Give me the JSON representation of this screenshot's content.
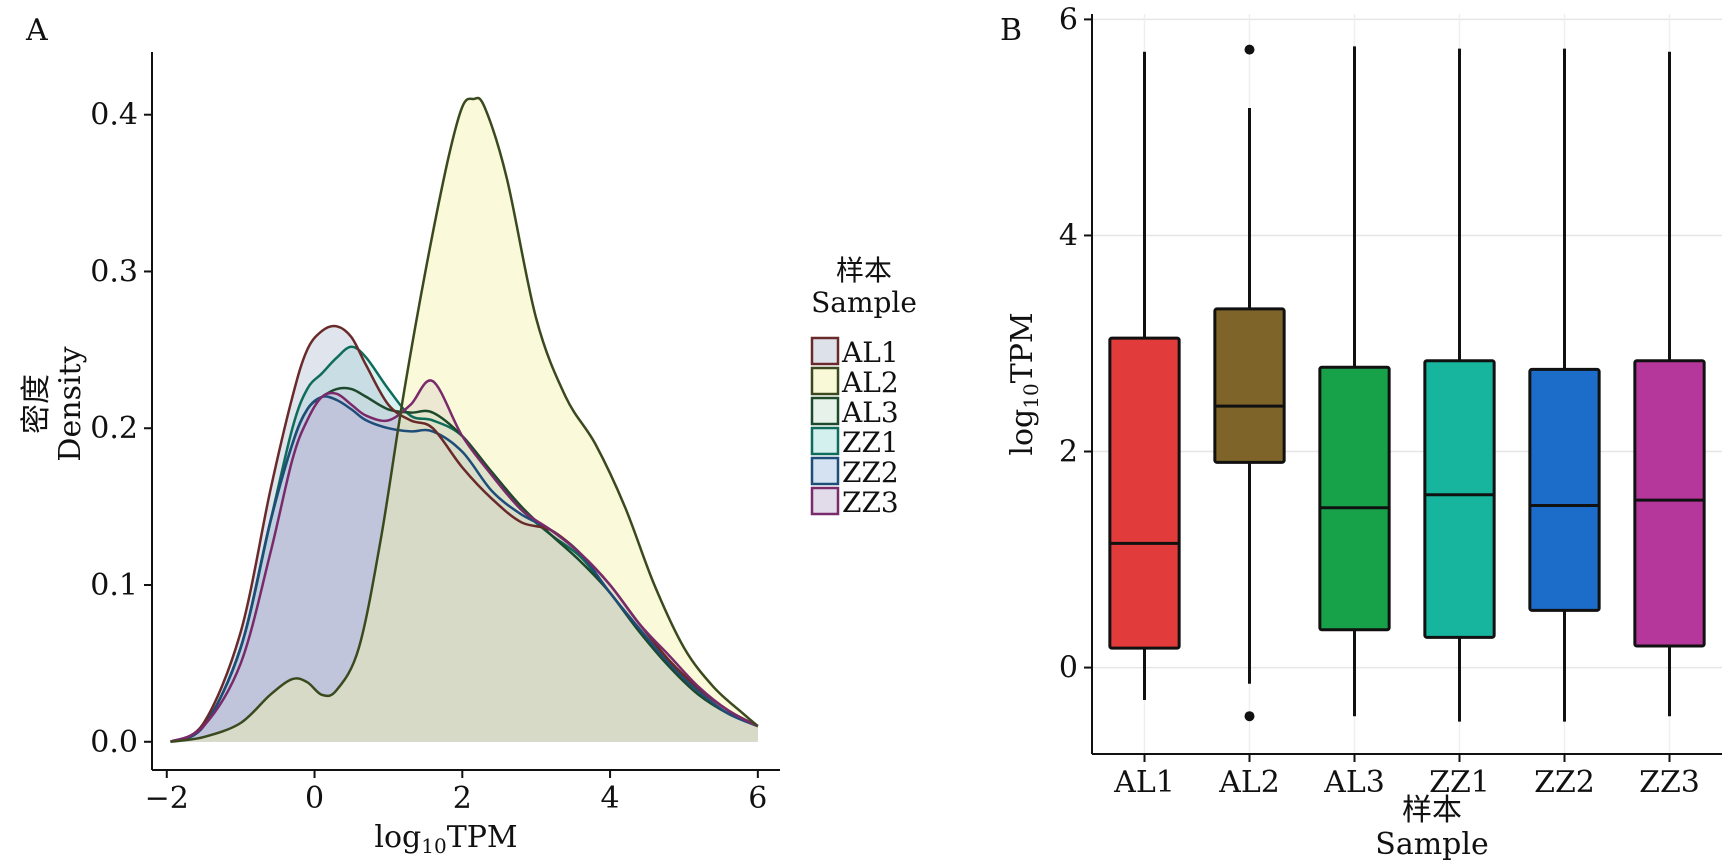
{
  "chart_data": [
    {
      "panel_label": "A",
      "type": "area",
      "xlabel": {
        "prefix": "log",
        "sub": "10",
        "suffix": "TPM"
      },
      "ylabel": [
        "密度",
        "Density"
      ],
      "xlim": [
        -2.2,
        6.3
      ],
      "ylim": [
        -0.018,
        0.44
      ],
      "xticks": [
        -2,
        0,
        2,
        4,
        6
      ],
      "xtick_labels": [
        "−2",
        "0",
        "2",
        "4",
        "6"
      ],
      "yticks": [
        0.0,
        0.1,
        0.2,
        0.3,
        0.4
      ],
      "ytick_labels": [
        "0.0",
        "0.1",
        "0.2",
        "0.3",
        "0.4"
      ],
      "grid": false,
      "legend": {
        "title": [
          "样本",
          "Sample"
        ],
        "position": "right",
        "entries": [
          "AL1",
          "AL2",
          "AL3",
          "ZZ1",
          "ZZ2",
          "ZZ3"
        ]
      },
      "series": [
        {
          "name": "ZZ1",
          "stroke": "#0f6b5a",
          "fill": "#a8e2e0",
          "x": [
            -1.95,
            -1.5,
            -1.0,
            -0.6,
            -0.3,
            -0.1,
            0.1,
            0.3,
            0.5,
            0.7,
            1.0,
            1.3,
            1.6,
            2.0,
            2.4,
            2.8,
            3.2,
            3.6,
            4.0,
            4.4,
            4.8,
            5.2,
            5.6,
            6.0
          ],
          "y": [
            0.0,
            0.01,
            0.06,
            0.14,
            0.2,
            0.225,
            0.235,
            0.245,
            0.252,
            0.245,
            0.225,
            0.208,
            0.205,
            0.195,
            0.17,
            0.148,
            0.132,
            0.118,
            0.095,
            0.07,
            0.048,
            0.03,
            0.018,
            0.01
          ]
        },
        {
          "name": "AL3",
          "stroke": "#1d4a2c",
          "fill": "#cfe6d6",
          "x": [
            -1.95,
            -1.5,
            -1.0,
            -0.6,
            -0.3,
            -0.1,
            0.1,
            0.3,
            0.5,
            0.7,
            1.0,
            1.3,
            1.6,
            2.0,
            2.4,
            2.8,
            3.2,
            3.6,
            4.0,
            4.4,
            4.8,
            5.2,
            5.6,
            6.0
          ],
          "y": [
            0.0,
            0.01,
            0.06,
            0.14,
            0.19,
            0.212,
            0.22,
            0.225,
            0.225,
            0.22,
            0.212,
            0.21,
            0.21,
            0.195,
            0.172,
            0.15,
            0.132,
            0.115,
            0.095,
            0.07,
            0.048,
            0.03,
            0.018,
            0.01
          ]
        },
        {
          "name": "ZZ2",
          "stroke": "#1f4d7a",
          "fill": "#a9c6e4",
          "x": [
            -1.95,
            -1.5,
            -1.0,
            -0.6,
            -0.3,
            -0.1,
            0.1,
            0.3,
            0.5,
            0.7,
            1.0,
            1.3,
            1.6,
            2.0,
            2.4,
            2.8,
            3.2,
            3.6,
            4.0,
            4.4,
            4.8,
            5.2,
            5.6,
            6.0
          ],
          "y": [
            0.0,
            0.01,
            0.06,
            0.14,
            0.19,
            0.212,
            0.22,
            0.218,
            0.212,
            0.205,
            0.2,
            0.198,
            0.198,
            0.185,
            0.16,
            0.145,
            0.135,
            0.12,
            0.095,
            0.072,
            0.05,
            0.032,
            0.018,
            0.01
          ]
        },
        {
          "name": "AL1",
          "stroke": "#6a2a2a",
          "fill": "#b9c3d6",
          "x": [
            -1.95,
            -1.5,
            -1.0,
            -0.6,
            -0.3,
            -0.1,
            0.1,
            0.3,
            0.5,
            0.7,
            1.0,
            1.3,
            1.6,
            2.0,
            2.4,
            2.8,
            3.2,
            3.6,
            4.0,
            4.4,
            4.8,
            5.2,
            5.6,
            6.0
          ],
          "y": [
            0.0,
            0.012,
            0.07,
            0.16,
            0.22,
            0.25,
            0.262,
            0.265,
            0.258,
            0.24,
            0.215,
            0.205,
            0.2,
            0.175,
            0.155,
            0.14,
            0.135,
            0.12,
            0.1,
            0.075,
            0.052,
            0.034,
            0.02,
            0.01
          ]
        },
        {
          "name": "ZZ3",
          "stroke": "#7a2a6a",
          "fill": "#c6b9d6",
          "x": [
            -1.95,
            -1.5,
            -1.0,
            -0.6,
            -0.3,
            -0.1,
            0.1,
            0.3,
            0.5,
            0.7,
            1.0,
            1.3,
            1.6,
            2.0,
            2.4,
            2.8,
            3.2,
            3.6,
            4.0,
            4.4,
            4.8,
            5.2,
            5.6,
            6.0
          ],
          "y": [
            0.0,
            0.01,
            0.05,
            0.12,
            0.18,
            0.205,
            0.22,
            0.222,
            0.215,
            0.208,
            0.205,
            0.215,
            0.23,
            0.195,
            0.17,
            0.148,
            0.135,
            0.12,
            0.1,
            0.075,
            0.055,
            0.035,
            0.02,
            0.01
          ]
        },
        {
          "name": "AL2",
          "stroke": "#3b4a1e",
          "fill": "#f3f3b0",
          "x": [
            -1.95,
            -1.5,
            -1.0,
            -0.6,
            -0.3,
            -0.1,
            0.1,
            0.3,
            0.6,
            0.9,
            1.2,
            1.5,
            1.8,
            2.0,
            2.15,
            2.3,
            2.6,
            3.0,
            3.4,
            3.8,
            4.2,
            4.6,
            5.0,
            5.4,
            5.8,
            6.0
          ],
          "y": [
            0.0,
            0.003,
            0.012,
            0.03,
            0.04,
            0.038,
            0.03,
            0.033,
            0.06,
            0.13,
            0.22,
            0.3,
            0.37,
            0.405,
            0.41,
            0.405,
            0.36,
            0.27,
            0.22,
            0.19,
            0.15,
            0.1,
            0.06,
            0.035,
            0.018,
            0.01
          ]
        }
      ]
    },
    {
      "panel_label": "B",
      "type": "box",
      "xlabel": [
        "样本",
        "Sample"
      ],
      "ylabel": {
        "prefix": "log",
        "sub": "10",
        "suffix": "TPM"
      },
      "ylim": [
        -0.8,
        6.05
      ],
      "yticks": [
        0,
        2,
        4,
        6
      ],
      "ytick_labels": [
        "0",
        "2",
        "4",
        "6"
      ],
      "grid": true,
      "categories": [
        "AL1",
        "AL2",
        "AL3",
        "ZZ1",
        "ZZ2",
        "ZZ3"
      ],
      "boxes": [
        {
          "name": "AL1",
          "whisker_low": -0.3,
          "q1": 0.18,
          "median": 1.15,
          "q3": 3.05,
          "whisker_high": 5.7,
          "outliers": [],
          "color": "#e23b3b"
        },
        {
          "name": "AL2",
          "whisker_low": -0.15,
          "q1": 1.9,
          "median": 2.42,
          "q3": 3.32,
          "whisker_high": 5.18,
          "outliers": [
            -0.45,
            5.72
          ],
          "color": "#7e6428"
        },
        {
          "name": "AL3",
          "whisker_low": -0.45,
          "q1": 0.35,
          "median": 1.48,
          "q3": 2.78,
          "whisker_high": 5.75,
          "outliers": [],
          "color": "#17a24a"
        },
        {
          "name": "ZZ1",
          "whisker_low": -0.5,
          "q1": 0.28,
          "median": 1.6,
          "q3": 2.84,
          "whisker_high": 5.73,
          "outliers": [],
          "color": "#17b59e"
        },
        {
          "name": "ZZ2",
          "whisker_low": -0.5,
          "q1": 0.53,
          "median": 1.5,
          "q3": 2.76,
          "whisker_high": 5.73,
          "outliers": [],
          "color": "#1c6cc9"
        },
        {
          "name": "ZZ3",
          "whisker_low": -0.45,
          "q1": 0.2,
          "median": 1.55,
          "q3": 2.84,
          "whisker_high": 5.7,
          "outliers": [],
          "color": "#b5379b"
        }
      ]
    }
  ]
}
